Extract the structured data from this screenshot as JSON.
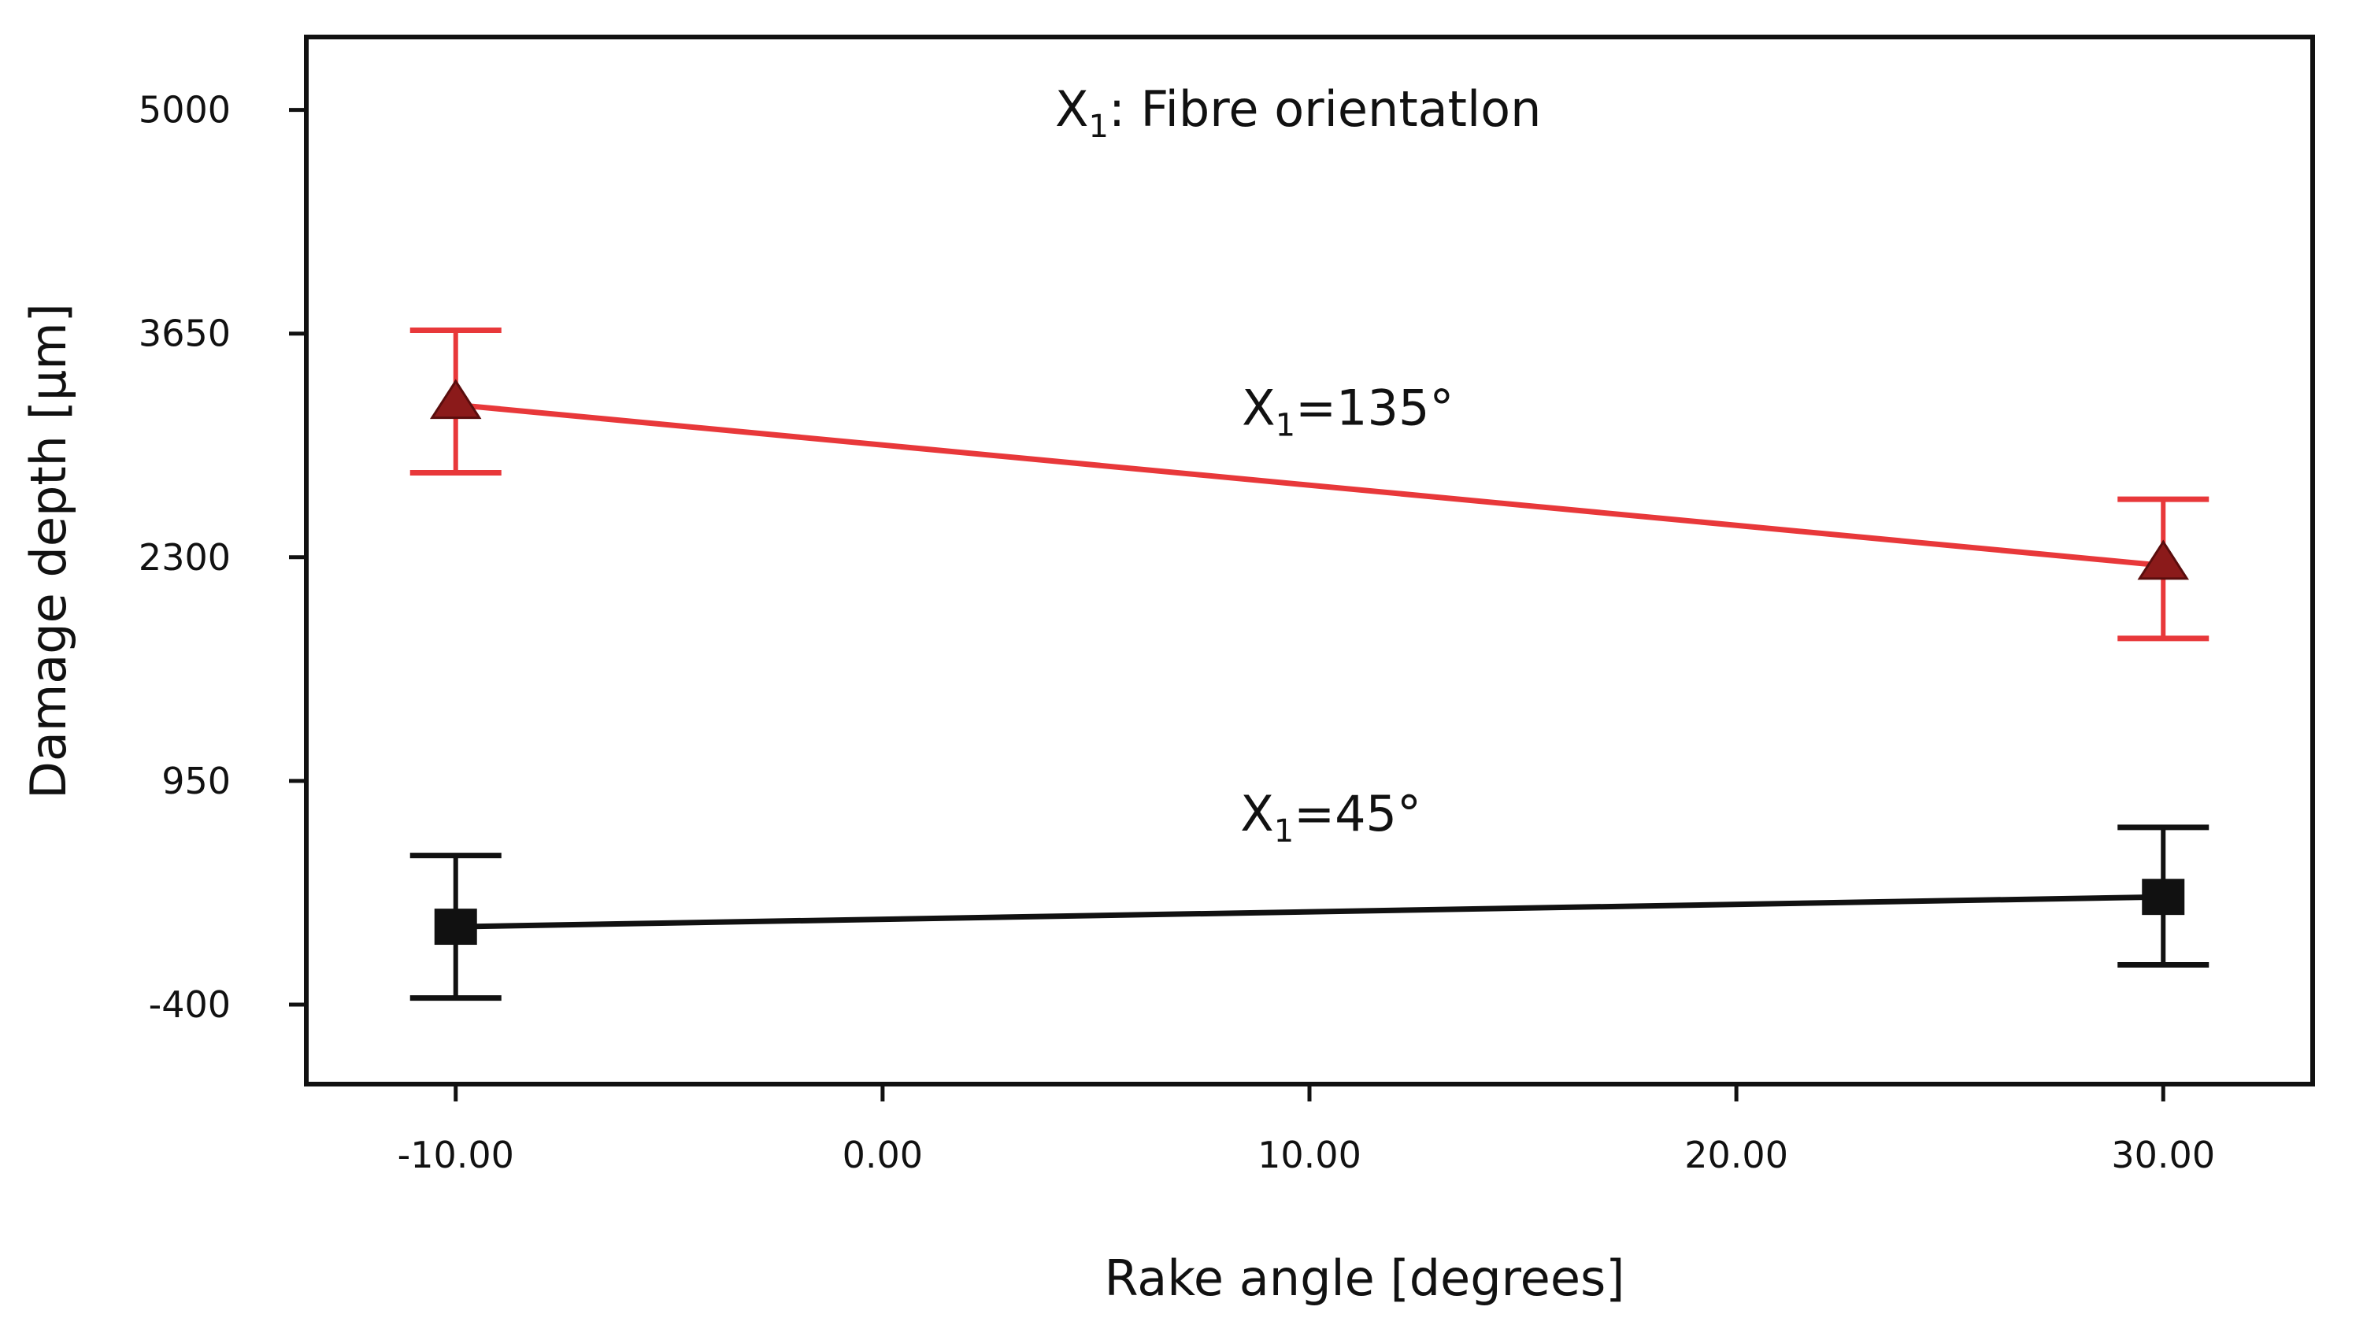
{
  "chart_data": {
    "type": "line",
    "title_annotation": {
      "prefix": "X",
      "subscript": "1",
      "suffix": ": Fibre orientatlon"
    },
    "xlabel": "Rake angle [degrees]",
    "ylabel": "Damage depth [µm]",
    "xlim": [
      -13.5,
      33.5
    ],
    "ylim": [
      -880,
      5440
    ],
    "x_ticks": [
      -10,
      0,
      10,
      20,
      30
    ],
    "x_tick_labels": [
      "-10.00",
      "0.00",
      "10.00",
      "20.00",
      "30.00"
    ],
    "y_ticks": [
      -400,
      950,
      2300,
      3650,
      5000
    ],
    "y_tick_labels": [
      "-400",
      "950",
      "2300",
      "3650",
      "5000"
    ],
    "grid": false,
    "series": [
      {
        "name": "X1=135°",
        "label_prefix": "X",
        "label_subscript": "1",
        "label_suffix": "=135°",
        "label_anchor": [
          10.9,
          3100
        ],
        "color": "#e8383a",
        "marker_color": "#8b1a1a",
        "marker": "triangle",
        "x": [
          -10,
          30
        ],
        "y": [
          3220,
          2250
        ],
        "error_low": [
          2810,
          1810
        ],
        "error_high": [
          3670,
          2650
        ]
      },
      {
        "name": "X1=45°",
        "label_prefix": "X",
        "label_subscript": "1",
        "label_suffix": "=45°",
        "label_anchor": [
          10.5,
          650
        ],
        "color": "#111111",
        "marker_color": "#111111",
        "marker": "square",
        "x": [
          -10,
          30
        ],
        "y": [
          70,
          250
        ],
        "error_low": [
          -360,
          -160
        ],
        "error_high": [
          500,
          670
        ]
      }
    ]
  }
}
